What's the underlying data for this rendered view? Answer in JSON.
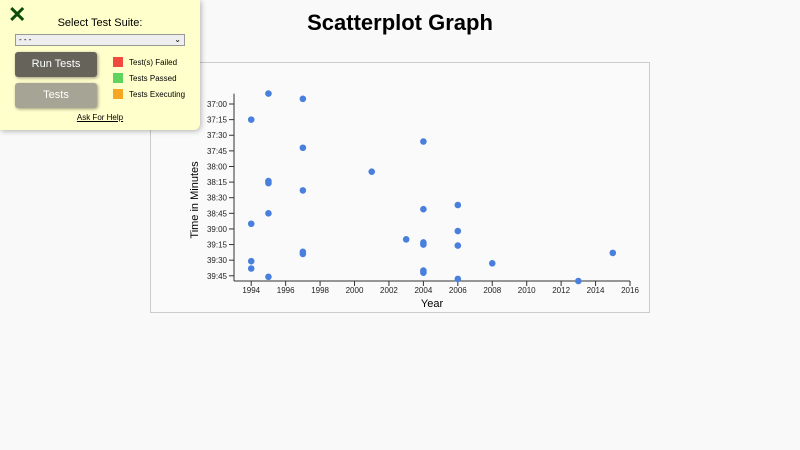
{
  "title": "Scatterplot Graph",
  "panel": {
    "close_icon": "close-x-icon",
    "select_label": "Select Test Suite:",
    "select_value": "- - -",
    "run_label": "Run Tests",
    "tests_label": "Tests",
    "legend": [
      {
        "label": "Test(s) Failed",
        "color": "#f2493e"
      },
      {
        "label": "Tests Passed",
        "color": "#5fd35c"
      },
      {
        "label": "Tests Executing",
        "color": "#f5a623"
      }
    ],
    "help_label": "Ask For Help"
  },
  "chart_data": {
    "type": "scatter",
    "title": "Scatterplot Graph",
    "xlabel": "Year",
    "ylabel": "Time in Minutes",
    "xlim": [
      1993,
      2016
    ],
    "ylim": [
      "36:50",
      "39:50"
    ],
    "point_color": "#4a80dd",
    "xticks": [
      "1994",
      "1996",
      "1998",
      "2000",
      "2002",
      "2004",
      "2006",
      "2008",
      "2010",
      "2012",
      "2014",
      "2016"
    ],
    "yticks": [
      "37:00",
      "37:15",
      "37:30",
      "37:45",
      "38:00",
      "38:15",
      "38:30",
      "38:45",
      "39:00",
      "39:15",
      "39:30",
      "39:45"
    ],
    "points": [
      [
        1995,
        "36:50"
      ],
      [
        1997,
        "36:55"
      ],
      [
        1994,
        "37:15"
      ],
      [
        2004,
        "37:36"
      ],
      [
        1997,
        "37:42"
      ],
      [
        2001,
        "38:05"
      ],
      [
        1995,
        "38:14"
      ],
      [
        1995,
        "38:16"
      ],
      [
        1997,
        "38:23"
      ],
      [
        2006,
        "38:37"
      ],
      [
        2004,
        "38:41"
      ],
      [
        1995,
        "38:45"
      ],
      [
        1994,
        "38:55"
      ],
      [
        2006,
        "39:02"
      ],
      [
        2003,
        "39:10"
      ],
      [
        2004,
        "39:13"
      ],
      [
        2004,
        "39:15"
      ],
      [
        2006,
        "39:16"
      ],
      [
        1997,
        "39:22"
      ],
      [
        1997,
        "39:24"
      ],
      [
        2015,
        "39:23"
      ],
      [
        1994,
        "39:31"
      ],
      [
        2008,
        "39:33"
      ],
      [
        1994,
        "39:38"
      ],
      [
        2004,
        "39:40"
      ],
      [
        2004,
        "39:42"
      ],
      [
        1995,
        "39:46"
      ],
      [
        2006,
        "39:48"
      ],
      [
        2013,
        "39:50"
      ]
    ]
  }
}
